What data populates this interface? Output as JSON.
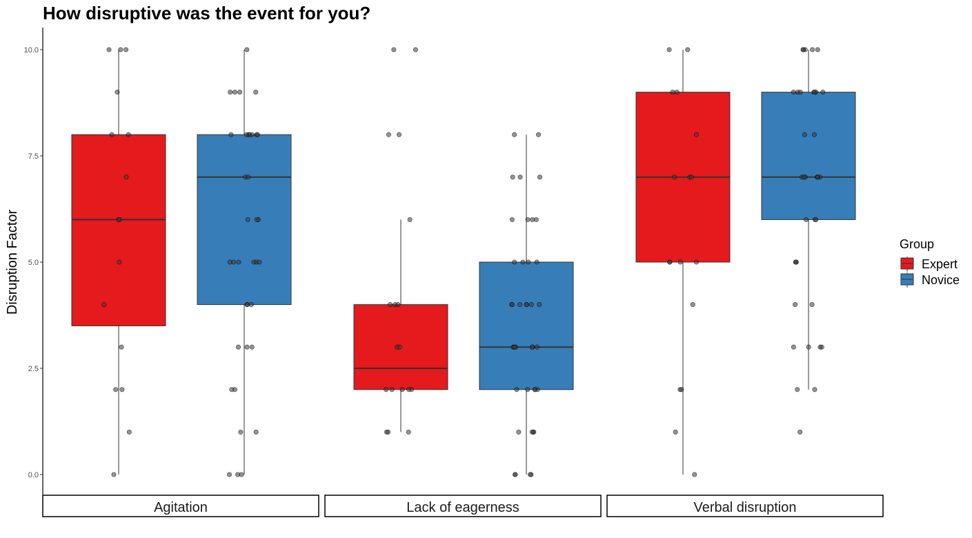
{
  "chart_data": {
    "type": "box",
    "title": "How disruptive was the event for you?",
    "ylabel": "Disruption Factor",
    "xlabel": "",
    "ylim": [
      0,
      10
    ],
    "yticks": [
      "0.0",
      "2.5",
      "5.0",
      "7.5",
      "10.0"
    ],
    "ytick_values": [
      0,
      2.5,
      5,
      7.5,
      10
    ],
    "grid": false,
    "legend": {
      "title": "Group",
      "position": "right",
      "entries": [
        {
          "name": "Expert",
          "color": "#E41A1C"
        },
        {
          "name": "Novice",
          "color": "#377EB8"
        }
      ]
    },
    "facets": [
      {
        "label": "Agitation",
        "boxes": [
          {
            "group": "Expert",
            "q1": 3.5,
            "median": 6,
            "q3": 8,
            "whisker_low": 0,
            "whisker_high": 10,
            "points": [
              10,
              10,
              10,
              9,
              8,
              8,
              7,
              6,
              6,
              5,
              4,
              3,
              2,
              2,
              1,
              0
            ]
          },
          {
            "group": "Novice",
            "q1": 4,
            "median": 7,
            "q3": 8,
            "whisker_low": 0,
            "whisker_high": 10,
            "points": [
              10,
              9,
              9,
              9,
              9,
              8,
              8,
              8,
              8,
              8,
              8,
              8,
              7,
              7,
              6,
              6,
              6,
              5,
              5,
              5,
              5,
              5,
              5,
              4,
              4,
              4,
              3,
              3,
              3,
              2,
              2,
              1,
              1,
              0,
              0,
              0
            ]
          }
        ]
      },
      {
        "label": "Lack of eagerness",
        "boxes": [
          {
            "group": "Expert",
            "q1": 2,
            "median": 2.5,
            "q3": 4,
            "whisker_low": 1,
            "whisker_high": 6,
            "points": [
              10,
              10,
              8,
              8,
              6,
              4,
              4,
              4,
              3,
              3,
              2,
              2,
              2,
              2,
              2,
              1,
              1,
              1
            ]
          },
          {
            "group": "Novice",
            "q1": 2,
            "median": 3,
            "q3": 5,
            "whisker_low": 0,
            "whisker_high": 8,
            "points": [
              8,
              8,
              7,
              7,
              7,
              6,
              6,
              6,
              6,
              5,
              5,
              5,
              5,
              4,
              4,
              4,
              4,
              4,
              4,
              4,
              3,
              3,
              3,
              3,
              3,
              3,
              3,
              2,
              2,
              2,
              2,
              2,
              1,
              1,
              1,
              1,
              0,
              0,
              0,
              0
            ]
          }
        ]
      },
      {
        "label": "Verbal disruption",
        "boxes": [
          {
            "group": "Expert",
            "q1": 5,
            "median": 7,
            "q3": 9,
            "whisker_low": 0,
            "whisker_high": 10,
            "points": [
              10,
              10,
              9,
              9,
              8,
              7,
              7,
              7,
              5,
              5,
              5,
              5,
              4,
              2,
              2,
              1,
              0
            ]
          },
          {
            "group": "Novice",
            "q1": 6,
            "median": 7,
            "q3": 9,
            "whisker_low": 2,
            "whisker_high": 10,
            "points": [
              10,
              10,
              10,
              10,
              10,
              9,
              9,
              9,
              9,
              9,
              9,
              9,
              8,
              8,
              7,
              7,
              7,
              7,
              7,
              7,
              7,
              6,
              6,
              6,
              5,
              5,
              5,
              4,
              4,
              3,
              3,
              3,
              3,
              2,
              2,
              1
            ]
          }
        ]
      }
    ]
  }
}
